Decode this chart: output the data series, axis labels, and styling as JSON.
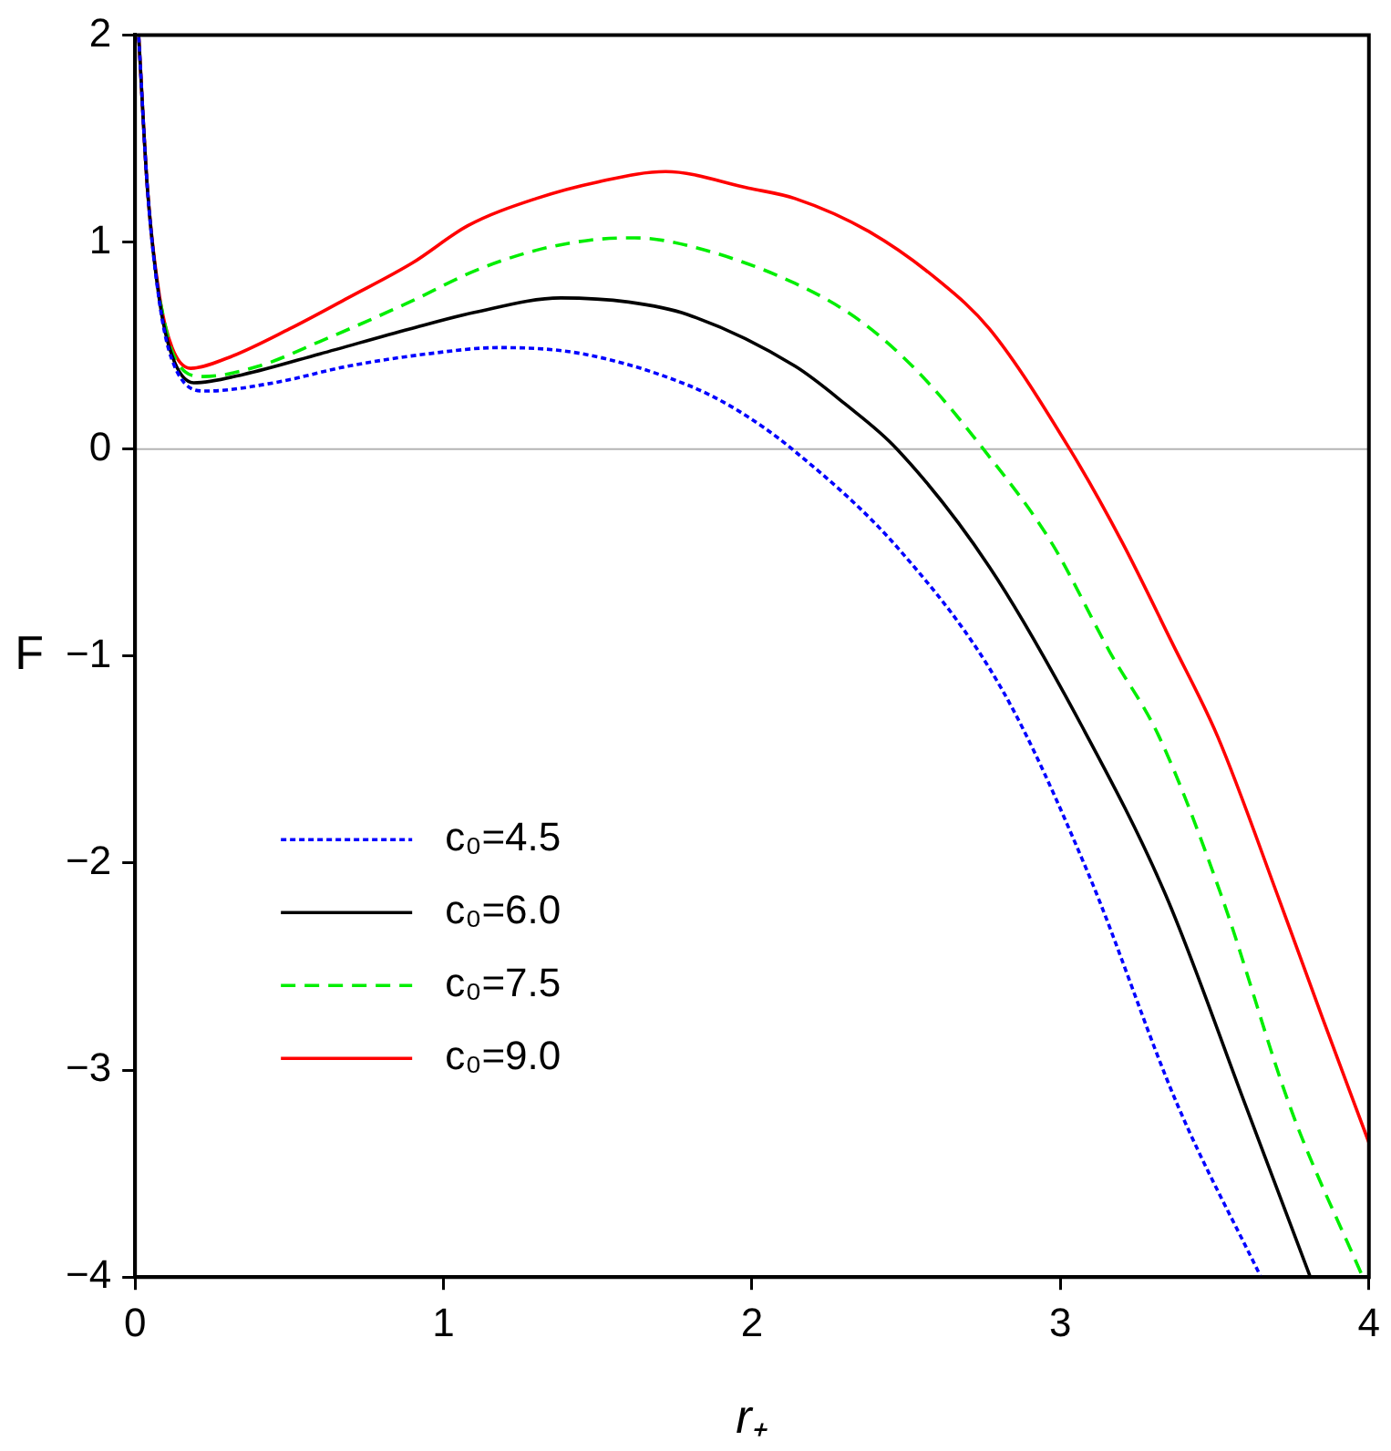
{
  "chart_data": {
    "type": "line",
    "xlabel": "r₊",
    "ylabel": "F",
    "xlim": [
      0,
      4
    ],
    "xticks": [
      0,
      1,
      2,
      3,
      4
    ],
    "ylim": [
      -4,
      2
    ],
    "yticks": [
      -4,
      -3,
      -2,
      -1,
      0,
      1,
      2
    ],
    "grid": false,
    "legend": "bottom left",
    "marker": "none",
    "ref_lines": [
      {
        "axis": "y",
        "value": 0,
        "color": "#b4b4b4"
      }
    ],
    "series": [
      {
        "name": "c₀=4.5",
        "color": "#0000ff",
        "line_style": "dotted",
        "x": [
          0.012,
          0.04,
          0.08,
          0.12,
          0.23,
          0.45,
          0.69,
          0.95,
          1.18,
          1.45,
          1.79,
          1.95,
          2.13,
          2.48,
          2.81,
          3.09,
          3.38,
          3.65
        ],
        "values": [
          1.99,
          1.26,
          0.7,
          0.43,
          0.28,
          0.32,
          0.4,
          0.46,
          0.49,
          0.46,
          0.31,
          0.19,
          0,
          -0.49,
          -1.16,
          -2.05,
          -3.17,
          -4
        ]
      },
      {
        "name": "c₀=6.0",
        "color": "#000000",
        "line_style": "solid",
        "x": [
          0.012,
          0.04,
          0.08,
          0.12,
          0.19,
          0.35,
          0.6,
          0.89,
          1.1,
          1.38,
          1.6,
          1.79,
          2.14,
          2.3,
          2.47,
          2.77,
          3.07,
          3.34,
          3.6,
          3.81
        ],
        "values": [
          1.99,
          1.26,
          0.71,
          0.45,
          0.32,
          0.36,
          0.46,
          0.58,
          0.66,
          0.73,
          0.71,
          0.65,
          0.4,
          0.22,
          0,
          -0.57,
          -1.34,
          -2.15,
          -3.17,
          -4
        ]
      },
      {
        "name": "c₀=7.5",
        "color": "#00ee00",
        "line_style": "dashed",
        "x": [
          0.08,
          0.12,
          0.22,
          0.4,
          0.6,
          0.89,
          1.1,
          1.3,
          1.48,
          1.62,
          1.8,
          2.14,
          2.35,
          2.54,
          2.75,
          2.97,
          3.16,
          3.32,
          3.52,
          3.75,
          3.98
        ],
        "values": [
          0.72,
          0.47,
          0.35,
          0.4,
          0.52,
          0.71,
          0.86,
          0.96,
          1.01,
          1.02,
          0.98,
          0.8,
          0.62,
          0.37,
          0,
          -0.45,
          -0.98,
          -1.39,
          -2.15,
          -3.2,
          -4
        ]
      },
      {
        "name": "c₀=9.0",
        "color": "#ff0000",
        "line_style": "solid",
        "x": [
          0.012,
          0.04,
          0.08,
          0.12,
          0.18,
          0.3,
          0.5,
          0.69,
          0.9,
          1.08,
          1.3,
          1.5,
          1.72,
          1.99,
          2.14,
          2.38,
          2.6,
          2.77,
          3.03,
          3.2,
          3.36,
          3.51,
          3.71,
          3.85,
          4.0
        ],
        "values": [
          1.99,
          1.26,
          0.73,
          0.49,
          0.39,
          0.44,
          0.58,
          0.73,
          0.9,
          1.08,
          1.21,
          1.29,
          1.34,
          1.26,
          1.21,
          1.05,
          0.82,
          0.58,
          0,
          -0.45,
          -0.93,
          -1.39,
          -2.18,
          -2.75,
          -3.35
        ]
      }
    ]
  }
}
